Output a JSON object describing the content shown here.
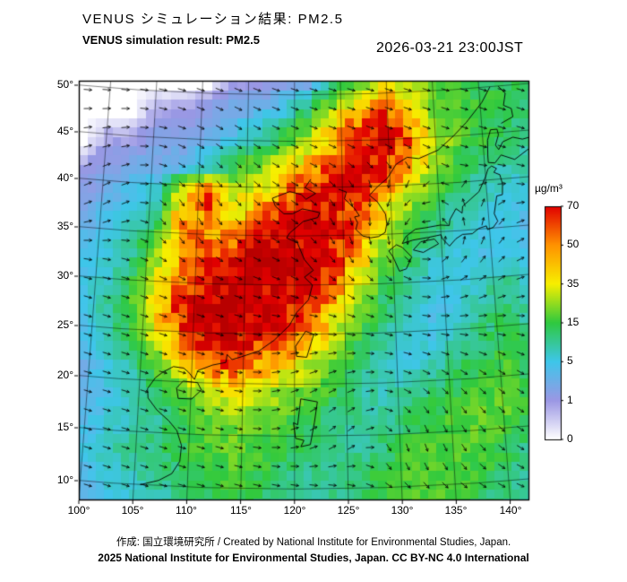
{
  "header": {
    "title_jp": "VENUS シミュレーション結果: PM2.5",
    "title_en": "VENUS simulation result: PM2.5",
    "datetime": "2026-03-21 23:00JST"
  },
  "footer": {
    "line1": "作成: 国立環境研究所 / Created by National Institute for Environmental Studies, Japan.",
    "line2": "2025 National Institute for Environmental Studies, Japan. CC BY-NC 4.0 International"
  },
  "chart_data": {
    "type": "heatmap",
    "title": "VENUS simulation result: PM2.5",
    "subtitle": "VENUS シミュレーション結果: PM2.5",
    "timestamp": "2026-03-21 23:00JST",
    "units": "µg/m³",
    "projection": "conic",
    "grid_on": true,
    "x_range": [
      100,
      140
    ],
    "y_range": [
      10,
      50
    ],
    "x_ticks": [
      "100°",
      "105°",
      "110°",
      "115°",
      "120°",
      "125°",
      "130°",
      "135°",
      "140°"
    ],
    "y_ticks": [
      "50°",
      "45°",
      "40°",
      "35°",
      "30°",
      "25°",
      "20°",
      "15°",
      "10°"
    ],
    "colorbar": {
      "label": "µg/m³",
      "ticks": [
        70,
        50,
        35,
        15,
        5,
        1,
        0
      ],
      "stops": [
        [
          0,
          "#ffffff"
        ],
        [
          1,
          "#9b97e4"
        ],
        [
          5,
          "#3ec6ea"
        ],
        [
          15,
          "#2fc93f"
        ],
        [
          35,
          "#f7ef00"
        ],
        [
          50,
          "#ff9200"
        ],
        [
          70,
          "#e10000"
        ],
        [
          90,
          "#b80000"
        ]
      ]
    },
    "grid": {
      "cols": 19,
      "rows": 16,
      "values": [
        [
          0,
          0,
          0,
          0,
          0,
          0,
          1,
          1,
          2,
          3,
          10,
          22,
          32,
          28,
          20,
          16,
          14,
          14,
          12
        ],
        [
          0,
          0,
          0,
          1,
          1,
          2,
          3,
          4,
          6,
          14,
          30,
          50,
          62,
          45,
          24,
          18,
          15,
          14,
          12
        ],
        [
          0,
          1,
          1,
          2,
          2,
          3,
          5,
          8,
          16,
          26,
          45,
          68,
          76,
          58,
          30,
          20,
          15,
          12,
          10
        ],
        [
          1,
          2,
          3,
          3,
          4,
          8,
          15,
          25,
          35,
          48,
          62,
          74,
          68,
          45,
          24,
          14,
          10,
          8,
          8
        ],
        [
          2,
          3,
          5,
          8,
          40,
          66,
          32,
          38,
          56,
          70,
          76,
          64,
          44,
          28,
          16,
          10,
          8,
          6,
          5
        ],
        [
          3,
          5,
          8,
          15,
          55,
          46,
          38,
          62,
          76,
          80,
          74,
          58,
          34,
          20,
          12,
          8,
          6,
          5,
          4
        ],
        [
          4,
          6,
          10,
          25,
          46,
          56,
          72,
          80,
          85,
          80,
          68,
          44,
          24,
          14,
          8,
          6,
          5,
          5,
          4
        ],
        [
          5,
          8,
          15,
          35,
          60,
          76,
          85,
          85,
          80,
          74,
          58,
          34,
          17,
          10,
          6,
          5,
          8,
          10,
          6
        ],
        [
          5,
          10,
          20,
          45,
          70,
          85,
          85,
          80,
          74,
          64,
          44,
          24,
          12,
          8,
          5,
          6,
          10,
          12,
          8
        ],
        [
          4,
          8,
          15,
          35,
          60,
          80,
          80,
          74,
          64,
          48,
          30,
          17,
          10,
          6,
          5,
          8,
          12,
          15,
          10
        ],
        [
          3,
          6,
          10,
          20,
          36,
          56,
          60,
          50,
          40,
          30,
          20,
          12,
          8,
          6,
          8,
          12,
          15,
          18,
          12
        ],
        [
          3,
          5,
          8,
          12,
          20,
          30,
          36,
          30,
          25,
          20,
          15,
          10,
          8,
          10,
          12,
          15,
          18,
          20,
          15
        ],
        [
          4,
          6,
          8,
          10,
          15,
          20,
          22,
          20,
          18,
          15,
          12,
          10,
          10,
          12,
          15,
          18,
          20,
          18,
          12
        ],
        [
          5,
          8,
          10,
          12,
          15,
          18,
          20,
          18,
          15,
          12,
          10,
          10,
          12,
          15,
          18,
          20,
          18,
          15,
          10
        ],
        [
          4,
          6,
          8,
          10,
          12,
          15,
          18,
          15,
          12,
          10,
          10,
          12,
          15,
          18,
          20,
          18,
          15,
          12,
          8
        ],
        [
          3,
          5,
          6,
          8,
          10,
          12,
          15,
          12,
          10,
          8,
          10,
          12,
          15,
          18,
          18,
          15,
          12,
          10,
          8
        ]
      ]
    },
    "wind": {
      "base": {
        "u": 0.6,
        "v": 0.18
      },
      "vortices": [
        {
          "x": 0.76,
          "y": 0.43,
          "r": 0.16,
          "s": -2.5
        },
        {
          "x": 0.7,
          "y": 0.74,
          "r": 0.2,
          "s": 1.2
        },
        {
          "x": 0.18,
          "y": 0.22,
          "r": 0.18,
          "s": 1.0
        }
      ]
    },
    "coastlines": [
      [
        [
          121.7,
          40.9
        ],
        [
          121.1,
          40.0
        ],
        [
          122.2,
          39.4
        ],
        [
          121.2,
          38.8
        ],
        [
          120.7,
          39.3
        ],
        [
          119.5,
          39.6
        ],
        [
          118.2,
          39.1
        ],
        [
          117.7,
          38.9
        ],
        [
          118.0,
          38.1
        ],
        [
          118.9,
          37.3
        ],
        [
          119.8,
          37.3
        ],
        [
          120.8,
          37.8
        ],
        [
          121.8,
          37.6
        ],
        [
          122.6,
          37.4
        ],
        [
          122.4,
          36.9
        ],
        [
          120.9,
          36.5
        ],
        [
          119.5,
          35.3
        ],
        [
          119.2,
          34.8
        ],
        [
          120.3,
          34.3
        ],
        [
          121.0,
          32.6
        ],
        [
          121.9,
          31.5
        ],
        [
          121.0,
          30.8
        ],
        [
          121.8,
          30.0
        ],
        [
          121.4,
          28.5
        ],
        [
          120.2,
          27.2
        ],
        [
          119.5,
          25.9
        ],
        [
          118.0,
          24.4
        ],
        [
          116.5,
          23.3
        ],
        [
          114.8,
          22.7
        ],
        [
          113.9,
          22.4
        ],
        [
          113.4,
          22.9
        ],
        [
          113.3,
          22.1
        ],
        [
          112.0,
          21.8
        ],
        [
          110.6,
          21.2
        ],
        [
          110.3,
          20.3
        ],
        [
          109.7,
          21.0
        ],
        [
          109.2,
          21.4
        ],
        [
          108.2,
          21.5
        ],
        [
          107.2,
          20.9
        ],
        [
          106.5,
          20.3
        ],
        [
          105.8,
          19.2
        ],
        [
          105.9,
          18.3
        ],
        [
          106.8,
          17.2
        ],
        [
          108.0,
          16.2
        ],
        [
          108.8,
          15.3
        ],
        [
          109.3,
          13.9
        ],
        [
          109.2,
          12.4
        ],
        [
          108.5,
          11.2
        ],
        [
          107.3,
          10.5
        ],
        [
          105.6,
          9.9
        ]
      ],
      [
        [
          124.6,
          39.8
        ],
        [
          125.4,
          39.5
        ],
        [
          125.2,
          38.8
        ],
        [
          126.2,
          37.8
        ],
        [
          126.7,
          37.0
        ],
        [
          126.2,
          36.9
        ],
        [
          126.5,
          36.3
        ],
        [
          126.3,
          35.6
        ],
        [
          127.0,
          34.9
        ],
        [
          127.8,
          34.7
        ],
        [
          128.6,
          34.8
        ],
        [
          129.3,
          35.2
        ],
        [
          129.5,
          36.1
        ],
        [
          129.4,
          37.1
        ],
        [
          128.6,
          38.4
        ],
        [
          127.8,
          39.1
        ],
        [
          128.7,
          40.0
        ],
        [
          129.7,
          40.8
        ],
        [
          130.7,
          42.3
        ]
      ],
      [
        [
          130.7,
          42.3
        ],
        [
          131.9,
          43.0
        ],
        [
          133.1,
          42.8
        ],
        [
          135.2,
          43.6
        ],
        [
          136.9,
          45.0
        ],
        [
          138.4,
          46.4
        ],
        [
          140.2,
          48.4
        ],
        [
          141.2,
          50.2
        ]
      ],
      [
        [
          130.0,
          32.7
        ],
        [
          130.6,
          31.2
        ],
        [
          131.3,
          31.4
        ],
        [
          131.9,
          32.6
        ],
        [
          131.0,
          33.6
        ],
        [
          130.4,
          33.9
        ],
        [
          129.6,
          33.3
        ],
        [
          130.0,
          32.7
        ]
      ],
      [
        [
          132.1,
          33.3
        ],
        [
          133.1,
          33.0
        ],
        [
          134.7,
          33.8
        ],
        [
          134.3,
          34.3
        ],
        [
          132.9,
          34.1
        ],
        [
          132.1,
          33.3
        ]
      ],
      [
        [
          131.0,
          34.0
        ],
        [
          132.1,
          34.3
        ],
        [
          133.7,
          34.5
        ],
        [
          135.0,
          34.7
        ],
        [
          135.1,
          34.3
        ],
        [
          135.8,
          33.5
        ],
        [
          136.5,
          34.2
        ],
        [
          137.2,
          34.6
        ],
        [
          138.2,
          34.6
        ],
        [
          138.9,
          35.1
        ],
        [
          139.7,
          35.3
        ],
        [
          139.8,
          34.9
        ],
        [
          140.4,
          35.1
        ],
        [
          140.9,
          35.7
        ],
        [
          140.6,
          36.5
        ],
        [
          141.0,
          38.3
        ],
        [
          141.6,
          38.4
        ],
        [
          141.7,
          39.5
        ],
        [
          141.5,
          40.5
        ],
        [
          140.9,
          40.8
        ],
        [
          141.2,
          41.2
        ],
        [
          140.7,
          41.5
        ],
        [
          140.3,
          41.2
        ],
        [
          140.0,
          40.4
        ],
        [
          139.2,
          38.9
        ],
        [
          138.3,
          38.2
        ],
        [
          137.4,
          37.5
        ],
        [
          137.3,
          36.8
        ],
        [
          136.7,
          37.3
        ],
        [
          136.0,
          36.2
        ],
        [
          135.9,
          35.6
        ],
        [
          135.0,
          35.7
        ],
        [
          133.4,
          35.5
        ],
        [
          132.4,
          35.4
        ],
        [
          131.4,
          34.7
        ],
        [
          131.0,
          34.0
        ]
      ],
      [
        [
          140.4,
          42.6
        ],
        [
          140.4,
          41.9
        ],
        [
          141.1,
          41.8
        ],
        [
          141.8,
          42.6
        ],
        [
          143.2,
          42.0
        ],
        [
          144.6,
          42.9
        ],
        [
          145.5,
          43.3
        ],
        [
          145.3,
          44.3
        ],
        [
          144.2,
          44.1
        ],
        [
          143.2,
          44.4
        ],
        [
          142.1,
          44.0
        ],
        [
          141.6,
          43.2
        ],
        [
          141.3,
          43.7
        ],
        [
          141.7,
          44.8
        ],
        [
          141.6,
          45.4
        ],
        [
          140.9,
          45.4
        ],
        [
          140.5,
          44.3
        ],
        [
          140.4,
          42.6
        ]
      ],
      [
        [
          142.1,
          46.0
        ],
        [
          143.4,
          46.6
        ],
        [
          143.3,
          47.5
        ],
        [
          142.5,
          47.9
        ],
        [
          142.8,
          49.2
        ],
        [
          142.1,
          50.3
        ]
      ],
      [
        [
          121.1,
          25.3
        ],
        [
          121.9,
          25.0
        ],
        [
          121.2,
          22.7
        ],
        [
          120.2,
          22.8
        ],
        [
          120.1,
          23.8
        ],
        [
          121.1,
          25.3
        ]
      ],
      [
        [
          109.2,
          20.1
        ],
        [
          110.6,
          20.0
        ],
        [
          111.0,
          19.3
        ],
        [
          110.1,
          18.4
        ],
        [
          108.8,
          18.4
        ],
        [
          108.6,
          19.4
        ],
        [
          109.2,
          20.1
        ]
      ],
      [
        [
          120.6,
          18.6
        ],
        [
          122.2,
          18.3
        ],
        [
          121.9,
          16.3
        ],
        [
          121.5,
          14.2
        ],
        [
          120.6,
          14.0
        ],
        [
          120.9,
          14.6
        ],
        [
          120.1,
          14.8
        ],
        [
          119.9,
          16.3
        ],
        [
          120.3,
          16.1
        ],
        [
          120.6,
          18.6
        ]
      ]
    ]
  }
}
